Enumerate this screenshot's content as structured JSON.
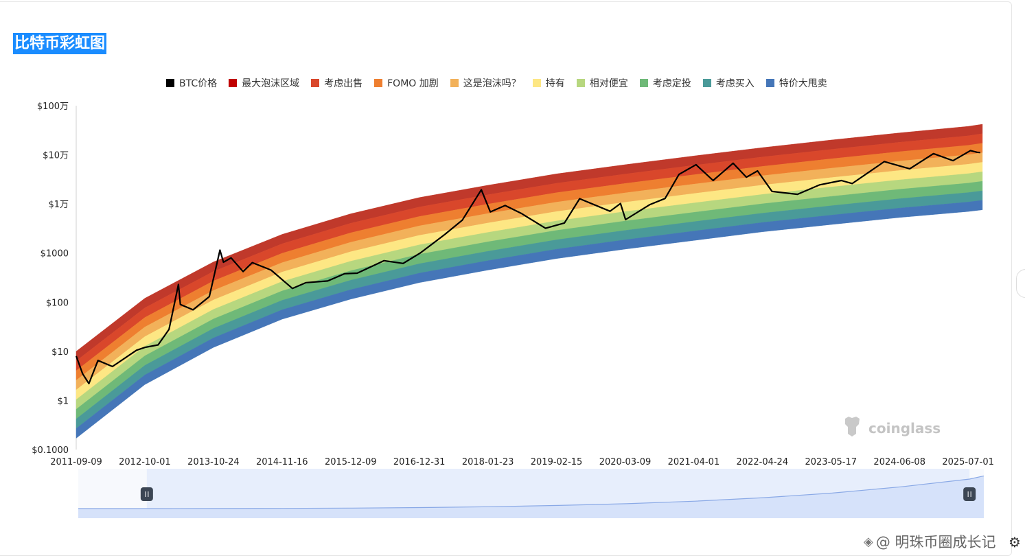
{
  "title": "比特币彩虹图",
  "legend": [
    {
      "label": "BTC价格",
      "color": "#000000"
    },
    {
      "label": "最大泡沫区域",
      "color": "#c00000"
    },
    {
      "label": "考虑出售",
      "color": "#d9472b"
    },
    {
      "label": "FOMO 加剧",
      "color": "#ee7f30"
    },
    {
      "label": "这是泡沫吗？",
      "color": "#f2b15a"
    },
    {
      "label": "持有",
      "color": "#fde784"
    },
    {
      "label": "相对便宜",
      "color": "#b7d77f"
    },
    {
      "label": "考虑定投",
      "color": "#6fb978"
    },
    {
      "label": "考虑买入",
      "color": "#4a9a99"
    },
    {
      "label": "特价大甩卖",
      "color": "#4576b8"
    }
  ],
  "watermark_text": "coinglass",
  "footer_watermark": "@ 明珠币圈成长记",
  "chart_data": {
    "type": "area",
    "yscale": "log",
    "ylim": [
      0.1,
      1000000
    ],
    "y_ticks": [
      {
        "value": 1000000,
        "label": "$100万"
      },
      {
        "value": 100000,
        "label": "$10万"
      },
      {
        "value": 10000,
        "label": "$1万"
      },
      {
        "value": 1000,
        "label": "$1000"
      },
      {
        "value": 100,
        "label": "$100"
      },
      {
        "value": 10,
        "label": "$10"
      },
      {
        "value": 1,
        "label": "$1"
      },
      {
        "value": 0.1,
        "label": "$0.1000"
      }
    ],
    "x_ticks": [
      "2011-09-09",
      "2012-10-01",
      "2013-10-24",
      "2014-11-16",
      "2015-12-09",
      "2016-12-31",
      "2018-01-23",
      "2019-02-15",
      "2020-03-09",
      "2021-04-01",
      "2022-04-24",
      "2023-05-17",
      "2024-06-08",
      "2025-07-01"
    ],
    "xlim": [
      "2011-09-09",
      "2025-09-20"
    ],
    "rainbow_bands": {
      "dates": [
        "2011-09-09",
        "2012-10-01",
        "2013-10-24",
        "2014-11-16",
        "2015-12-09",
        "2016-12-31",
        "2018-01-23",
        "2019-02-15",
        "2020-03-09",
        "2021-04-01",
        "2022-04-24",
        "2023-05-17",
        "2024-06-08",
        "2025-07-01",
        "2025-09-20"
      ],
      "top_edge": [
        10,
        120,
        660,
        2400,
        6300,
        13500,
        24000,
        41000,
        63000,
        95000,
        140000,
        200000,
        280000,
        380000,
        420000
      ],
      "bottom_edge": [
        0.17,
        2.1,
        12,
        45,
        115,
        250,
        450,
        770,
        1200,
        1800,
        2700,
        3800,
        5300,
        7000,
        7600
      ],
      "bands": [
        {
          "name": "最大泡沫区域",
          "color": "#c0392b"
        },
        {
          "name": "考虑出售",
          "color": "#d9472b"
        },
        {
          "name": "FOMO 加剧",
          "color": "#ee7f30"
        },
        {
          "name": "这是泡沫吗？",
          "color": "#f2b15a"
        },
        {
          "name": "持有",
          "color": "#fde784"
        },
        {
          "name": "相对便宜",
          "color": "#b7d77f"
        },
        {
          "name": "考虑定投",
          "color": "#6fb978"
        },
        {
          "name": "考虑买入",
          "color": "#4a9a99"
        },
        {
          "name": "特价大甩卖",
          "color": "#4576b8"
        }
      ]
    },
    "series": [
      {
        "name": "BTC价格",
        "color": "#000000",
        "points": [
          [
            "2011-09-09",
            8
          ],
          [
            "2011-10-15",
            3.5
          ],
          [
            "2011-11-20",
            2.2
          ],
          [
            "2012-01-10",
            6.5
          ],
          [
            "2012-04-01",
            4.9
          ],
          [
            "2012-08-15",
            10.5
          ],
          [
            "2012-10-01",
            12
          ],
          [
            "2012-12-15",
            13.5
          ],
          [
            "2013-02-15",
            28
          ],
          [
            "2013-04-09",
            230
          ],
          [
            "2013-04-20",
            90
          ],
          [
            "2013-07-01",
            70
          ],
          [
            "2013-10-01",
            130
          ],
          [
            "2013-11-30",
            1150
          ],
          [
            "2013-12-20",
            650
          ],
          [
            "2014-02-01",
            800
          ],
          [
            "2014-04-10",
            420
          ],
          [
            "2014-06-01",
            640
          ],
          [
            "2014-09-15",
            450
          ],
          [
            "2015-01-14",
            190
          ],
          [
            "2015-04-01",
            250
          ],
          [
            "2015-08-01",
            270
          ],
          [
            "2015-11-05",
            380
          ],
          [
            "2016-01-15",
            390
          ],
          [
            "2016-06-15",
            700
          ],
          [
            "2016-10-01",
            615
          ],
          [
            "2017-01-05",
            1000
          ],
          [
            "2017-05-25",
            2400
          ],
          [
            "2017-09-01",
            4700
          ],
          [
            "2017-12-17",
            19500
          ],
          [
            "2018-02-06",
            6900
          ],
          [
            "2018-05-01",
            9300
          ],
          [
            "2018-08-01",
            6400
          ],
          [
            "2018-12-15",
            3200
          ],
          [
            "2019-04-01",
            4100
          ],
          [
            "2019-06-26",
            12800
          ],
          [
            "2019-12-15",
            7100
          ],
          [
            "2020-02-12",
            10200
          ],
          [
            "2020-03-12",
            4800
          ],
          [
            "2020-07-25",
            9600
          ],
          [
            "2020-10-21",
            12900
          ],
          [
            "2021-01-08",
            40000
          ],
          [
            "2021-04-14",
            63000
          ],
          [
            "2021-07-20",
            30000
          ],
          [
            "2021-11-10",
            67500
          ],
          [
            "2022-01-24",
            35000
          ],
          [
            "2022-03-28",
            47000
          ],
          [
            "2022-06-18",
            18000
          ],
          [
            "2022-11-09",
            15700
          ],
          [
            "2023-03-15",
            24500
          ],
          [
            "2023-07-15",
            30000
          ],
          [
            "2023-09-15",
            26000
          ],
          [
            "2024-03-14",
            73000
          ],
          [
            "2024-08-05",
            52000
          ],
          [
            "2024-12-17",
            106000
          ],
          [
            "2025-04-07",
            76000
          ],
          [
            "2025-07-14",
            122000
          ],
          [
            "2025-08-20",
            113000
          ],
          [
            "2025-09-08",
            111000
          ]
        ]
      }
    ],
    "navigator": {
      "range": [
        "2012-10-01",
        "2025-07-01"
      ]
    }
  }
}
